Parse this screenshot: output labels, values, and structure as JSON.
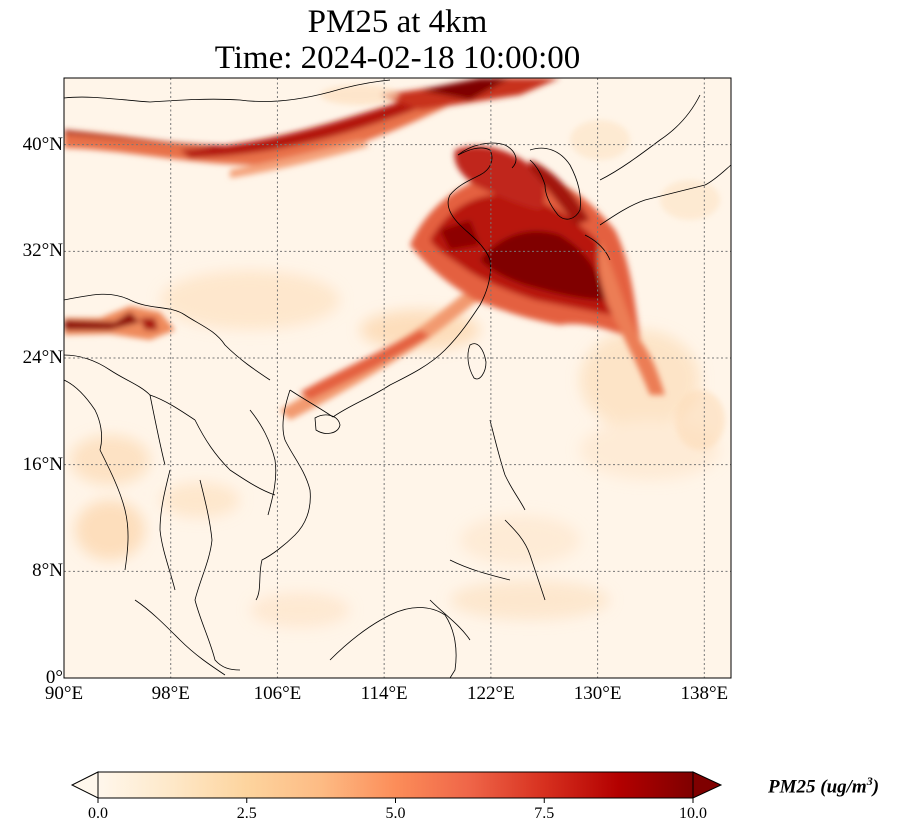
{
  "title_line1": "PM25 at 4km",
  "title_line2": "Time: 2024-02-18 10:00:00",
  "map": {
    "lon_range": [
      90,
      140
    ],
    "lat_range": [
      0,
      45
    ],
    "lat_ticks": [
      {
        "value": 0,
        "label": "0°"
      },
      {
        "value": 8,
        "label": "8°N"
      },
      {
        "value": 16,
        "label": "16°N"
      },
      {
        "value": 24,
        "label": "24°N"
      },
      {
        "value": 32,
        "label": "32°N"
      },
      {
        "value": 40,
        "label": "40°N"
      }
    ],
    "lon_ticks": [
      {
        "value": 90,
        "label": "90°E"
      },
      {
        "value": 98,
        "label": "98°E"
      },
      {
        "value": 106,
        "label": "106°E"
      },
      {
        "value": 114,
        "label": "114°E"
      },
      {
        "value": 122,
        "label": "122°E"
      },
      {
        "value": 130,
        "label": "130°E"
      },
      {
        "value": 138,
        "label": "138°E"
      }
    ],
    "gridlines": true,
    "gridline_style": "dotted",
    "colormap": "OrRd",
    "background_color": "#fff5e9"
  },
  "colorbar": {
    "title_text": "PM25 (ug/m",
    "title_superscript": "3",
    "title_close": ")",
    "range": [
      0.0,
      10.0
    ],
    "ticks": [
      {
        "value": 0.0,
        "label": "0.0"
      },
      {
        "value": 2.5,
        "label": "2.5"
      },
      {
        "value": 5.0,
        "label": "5.0"
      },
      {
        "value": 7.5,
        "label": "7.5"
      },
      {
        "value": 10.0,
        "label": "10.0"
      }
    ],
    "extend": "both",
    "colors": [
      "#fff7ec",
      "#fee8c8",
      "#fdd49e",
      "#fdbb84",
      "#fc8d59",
      "#ef6548",
      "#d7301f",
      "#b30000",
      "#7f0000"
    ]
  }
}
